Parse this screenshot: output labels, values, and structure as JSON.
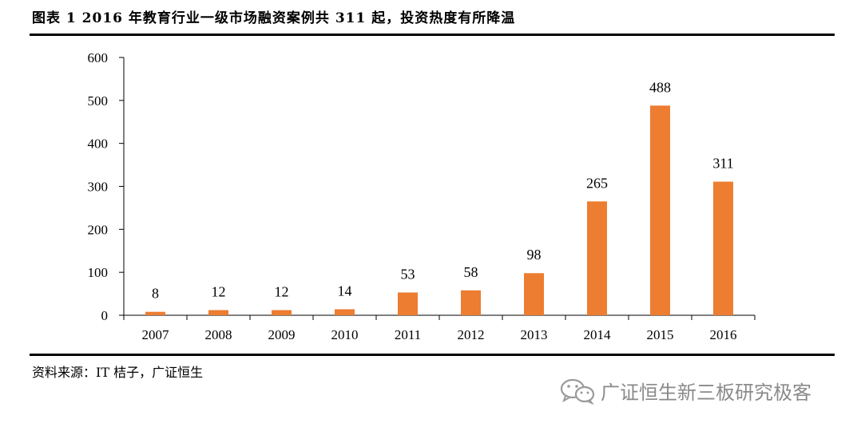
{
  "caption": "图表 1 2016 年教育行业一级市场融资案例共 311 起，投资热度有所降温",
  "source": "资料来源：IT 桔子，广证恒生",
  "watermark": {
    "text": "广证恒生新三板研究极客",
    "icon": "wechat-icon"
  },
  "chart_data": {
    "type": "bar",
    "categories": [
      "2007",
      "2008",
      "2009",
      "2010",
      "2011",
      "2012",
      "2013",
      "2014",
      "2015",
      "2016"
    ],
    "values": [
      8,
      12,
      12,
      14,
      53,
      58,
      98,
      265,
      488,
      311
    ],
    "data_labels": [
      "8",
      "12",
      "12",
      "14",
      "53",
      "58",
      "98",
      "265",
      "488",
      "311"
    ],
    "title": "",
    "xlabel": "",
    "ylabel": "",
    "ylim": [
      0,
      600
    ],
    "yticks": [
      0,
      100,
      200,
      300,
      400,
      500,
      600
    ],
    "ytick_labels": [
      "0",
      "100",
      "200",
      "300",
      "400",
      "500",
      "600"
    ],
    "bar_color": "#ED7D31",
    "grid": false,
    "legend": "none"
  }
}
